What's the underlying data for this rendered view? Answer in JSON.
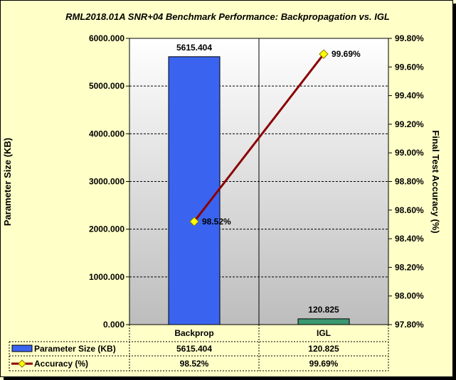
{
  "chart_data": {
    "type": "bar",
    "title": "RML2018.01A SNR+04 Benchmark Performance: Backpropagation vs. IGL",
    "categories": [
      "Backprop",
      "IGL"
    ],
    "series": [
      {
        "name": "Parameter Size (KB)",
        "type": "bar",
        "axis": "left",
        "values": [
          5615.404,
          120.825
        ],
        "labels": [
          "5615.404",
          "120.825"
        ],
        "colors": [
          "#3a64f0",
          "#3c9870"
        ]
      },
      {
        "name": "Accuracy (%)",
        "type": "line",
        "axis": "right",
        "values": [
          98.52,
          99.69
        ],
        "labels": [
          "98.52%",
          "99.69%"
        ],
        "color": "#8b0000",
        "marker_color": "#ffff00"
      }
    ],
    "ylabel": "Parameter Size (KB)",
    "ylim": [
      0,
      6000
    ],
    "yticks": [
      "0.000",
      "1000.000",
      "2000.000",
      "3000.000",
      "4000.000",
      "5000.000",
      "6000.000"
    ],
    "y2label": "Final Test Accuracy (%)",
    "y2lim": [
      97.8,
      99.8
    ],
    "y2ticks": [
      "97.80%",
      "98.00%",
      "98.20%",
      "98.40%",
      "98.60%",
      "98.80%",
      "99.00%",
      "99.20%",
      "99.40%",
      "99.60%",
      "99.80%"
    ],
    "grid": true,
    "legend": "bottom data table"
  }
}
